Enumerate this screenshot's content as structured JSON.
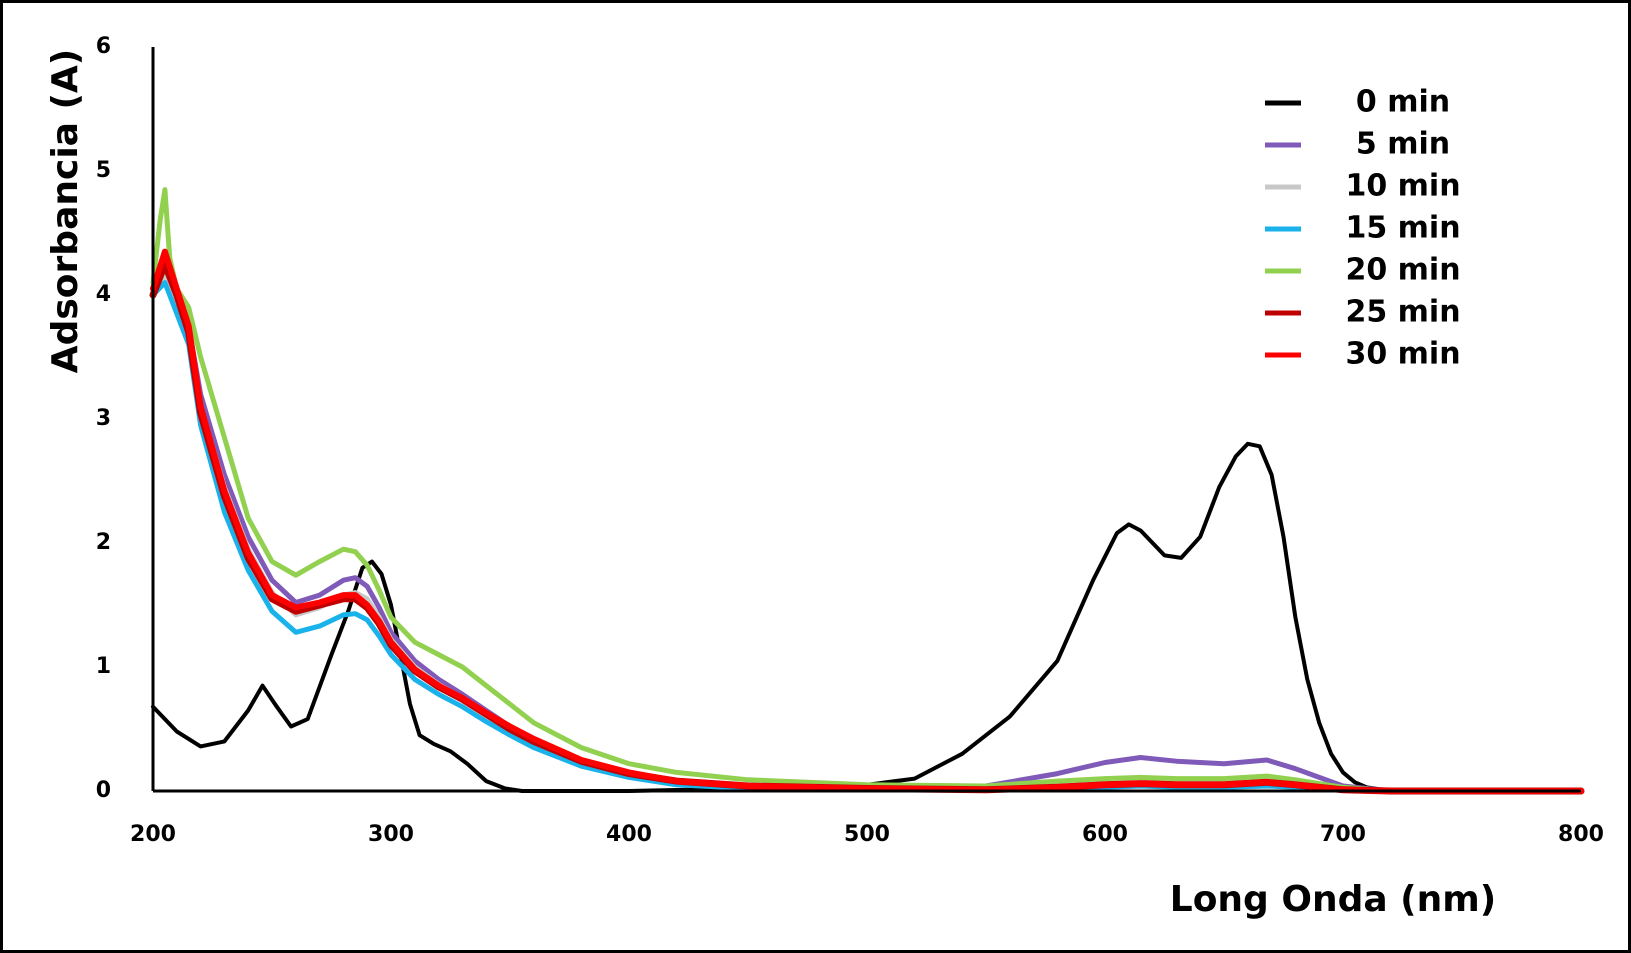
{
  "chart_data": {
    "type": "line",
    "xlabel": "Long Onda (nm)",
    "ylabel": "Adsorbancia (A)",
    "xlim": [
      200,
      800
    ],
    "ylim": [
      0,
      6
    ],
    "x_ticks": [
      200,
      300,
      400,
      500,
      600,
      700,
      800
    ],
    "y_ticks": [
      0,
      1,
      2,
      3,
      4,
      5,
      6
    ],
    "grid": false,
    "legend_position": "top-right",
    "series": [
      {
        "name": "0 min",
        "color": "#000000",
        "x": [
          200,
          210,
          220,
          230,
          240,
          246,
          252,
          258,
          265,
          275,
          282,
          288,
          292,
          296,
          300,
          304,
          308,
          312,
          318,
          325,
          332,
          340,
          348,
          355,
          400,
          450,
          500,
          520,
          540,
          560,
          580,
          595,
          605,
          610,
          615,
          625,
          632,
          640,
          648,
          655,
          660,
          665,
          670,
          675,
          680,
          685,
          690,
          695,
          700,
          705,
          710,
          720,
          800
        ],
        "y": [
          0.68,
          0.48,
          0.36,
          0.4,
          0.65,
          0.85,
          0.68,
          0.52,
          0.58,
          1.1,
          1.45,
          1.8,
          1.85,
          1.75,
          1.5,
          1.1,
          0.7,
          0.45,
          0.38,
          0.32,
          0.22,
          0.08,
          0.02,
          0,
          0,
          0.02,
          0.05,
          0.1,
          0.3,
          0.6,
          1.05,
          1.7,
          2.08,
          2.15,
          2.1,
          1.9,
          1.88,
          2.05,
          2.45,
          2.7,
          2.8,
          2.78,
          2.55,
          2.05,
          1.4,
          0.9,
          0.55,
          0.3,
          0.15,
          0.07,
          0.03,
          0,
          0
        ]
      },
      {
        "name": "5 min",
        "color": "#7f5ab8",
        "x": [
          200,
          205,
          210,
          215,
          220,
          230,
          240,
          250,
          260,
          270,
          280,
          285,
          290,
          295,
          300,
          310,
          320,
          330,
          340,
          350,
          360,
          380,
          400,
          420,
          450,
          500,
          550,
          580,
          600,
          615,
          630,
          650,
          668,
          680,
          700,
          720,
          800
        ],
        "y": [
          4.05,
          4.2,
          3.95,
          3.75,
          3.2,
          2.55,
          2.05,
          1.7,
          1.52,
          1.58,
          1.7,
          1.72,
          1.65,
          1.48,
          1.28,
          1.05,
          0.9,
          0.78,
          0.65,
          0.52,
          0.42,
          0.25,
          0.15,
          0.08,
          0.04,
          0.02,
          0.04,
          0.14,
          0.23,
          0.27,
          0.24,
          0.22,
          0.25,
          0.18,
          0.04,
          0,
          0
        ]
      },
      {
        "name": "10 min",
        "color": "#c8c8c8",
        "x": [
          200,
          205,
          210,
          215,
          220,
          230,
          240,
          250,
          260,
          270,
          280,
          285,
          290,
          295,
          300,
          310,
          320,
          330,
          340,
          350,
          360,
          380,
          400,
          420,
          450,
          500,
          550,
          580,
          600,
          615,
          630,
          650,
          668,
          680,
          700,
          720,
          800
        ],
        "y": [
          4.05,
          4.15,
          3.9,
          3.7,
          3.1,
          2.45,
          1.95,
          1.6,
          1.42,
          1.48,
          1.58,
          1.6,
          1.55,
          1.4,
          1.22,
          1.0,
          0.86,
          0.75,
          0.62,
          0.5,
          0.4,
          0.24,
          0.14,
          0.07,
          0.03,
          0.01,
          0.01,
          0.03,
          0.05,
          0.06,
          0.05,
          0.05,
          0.07,
          0.05,
          0.01,
          0,
          0
        ]
      },
      {
        "name": "15 min",
        "color": "#1ab2ea",
        "x": [
          200,
          205,
          210,
          215,
          220,
          230,
          240,
          250,
          260,
          270,
          280,
          285,
          290,
          295,
          300,
          310,
          320,
          330,
          340,
          350,
          360,
          380,
          400,
          420,
          450,
          500,
          550,
          580,
          600,
          615,
          630,
          650,
          668,
          680,
          700,
          720,
          800
        ],
        "y": [
          4.0,
          4.1,
          3.85,
          3.6,
          2.95,
          2.25,
          1.78,
          1.45,
          1.28,
          1.33,
          1.42,
          1.43,
          1.38,
          1.25,
          1.1,
          0.9,
          0.78,
          0.68,
          0.56,
          0.45,
          0.35,
          0.2,
          0.11,
          0.05,
          0.02,
          0.01,
          0.01,
          0.02,
          0.03,
          0.04,
          0.03,
          0.03,
          0.04,
          0.03,
          0.01,
          0,
          0
        ]
      },
      {
        "name": "20 min",
        "color": "#92d050",
        "x": [
          200,
          203,
          205,
          207,
          210,
          215,
          220,
          230,
          240,
          250,
          260,
          270,
          280,
          285,
          290,
          295,
          300,
          310,
          320,
          330,
          340,
          350,
          360,
          380,
          400,
          420,
          450,
          500,
          550,
          580,
          600,
          615,
          630,
          650,
          668,
          680,
          700,
          720,
          800
        ],
        "y": [
          4.1,
          4.6,
          4.85,
          4.3,
          4.05,
          3.9,
          3.5,
          2.85,
          2.2,
          1.85,
          1.74,
          1.85,
          1.95,
          1.93,
          1.82,
          1.62,
          1.4,
          1.2,
          1.1,
          1.0,
          0.85,
          0.7,
          0.55,
          0.35,
          0.22,
          0.15,
          0.09,
          0.05,
          0.04,
          0.08,
          0.1,
          0.11,
          0.1,
          0.1,
          0.12,
          0.09,
          0.03,
          0,
          0
        ]
      },
      {
        "name": "25 min",
        "color": "#c00000",
        "x": [
          200,
          205,
          210,
          215,
          220,
          230,
          240,
          250,
          260,
          270,
          280,
          285,
          290,
          295,
          300,
          310,
          320,
          330,
          340,
          350,
          360,
          380,
          400,
          420,
          450,
          500,
          550,
          580,
          600,
          615,
          630,
          650,
          668,
          680,
          700,
          720,
          800
        ],
        "y": [
          4.0,
          4.25,
          4.0,
          3.7,
          3.05,
          2.38,
          1.88,
          1.55,
          1.45,
          1.5,
          1.55,
          1.55,
          1.48,
          1.35,
          1.18,
          0.97,
          0.84,
          0.74,
          0.62,
          0.5,
          0.4,
          0.24,
          0.14,
          0.08,
          0.04,
          0.02,
          0.01,
          0.03,
          0.05,
          0.06,
          0.05,
          0.05,
          0.07,
          0.05,
          0.01,
          0,
          0
        ]
      },
      {
        "name": "30 min",
        "color": "#ff0000",
        "x": [
          200,
          205,
          210,
          215,
          220,
          230,
          240,
          250,
          260,
          270,
          280,
          285,
          290,
          295,
          300,
          310,
          320,
          330,
          340,
          350,
          360,
          380,
          400,
          420,
          450,
          500,
          550,
          580,
          600,
          615,
          630,
          650,
          668,
          680,
          700,
          720,
          800
        ],
        "y": [
          4.05,
          4.35,
          4.05,
          3.75,
          3.1,
          2.42,
          1.92,
          1.58,
          1.48,
          1.52,
          1.58,
          1.58,
          1.5,
          1.37,
          1.2,
          0.98,
          0.85,
          0.75,
          0.63,
          0.52,
          0.42,
          0.25,
          0.15,
          0.08,
          0.04,
          0.02,
          0.01,
          0.03,
          0.05,
          0.06,
          0.05,
          0.05,
          0.07,
          0.05,
          0.01,
          0,
          0
        ]
      }
    ]
  }
}
